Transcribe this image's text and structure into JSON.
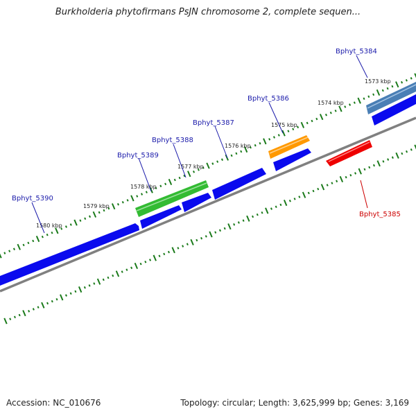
{
  "title": "Burkholderia phytofirmans PsJN chromosome 2, complete sequen...",
  "footer": {
    "accession": "Accession: NC_010676",
    "topology": "Topology: circular; Length: 3,625,999 bp; Genes: 3,169"
  },
  "colors": {
    "cds": "#0a0aee",
    "tick": "#1a7a1a",
    "backbone": "#808080",
    "label_forward": "#1a1aaa",
    "label_reverse": "#cc0000",
    "rrna_green": "#33bb33",
    "orange": "#ff9900",
    "steelblue": "#4a7fb5",
    "red": "#ee0000"
  },
  "kbp_labels": [
    "1573 kbp",
    "1574 kbp",
    "1575 kbp",
    "1576 kbp",
    "1577 kbp",
    "1578 kbp",
    "1579 kbp",
    "1580 kbp"
  ],
  "genes": [
    {
      "label": "Bphyt_5384",
      "strand": "forward"
    },
    {
      "label": "Bphyt_5385",
      "strand": "reverse"
    },
    {
      "label": "Bphyt_5386",
      "strand": "forward"
    },
    {
      "label": "Bphyt_5387",
      "strand": "forward"
    },
    {
      "label": "Bphyt_5388",
      "strand": "forward"
    },
    {
      "label": "Bphyt_5389",
      "strand": "forward"
    },
    {
      "label": "Bphyt_5390",
      "strand": "forward"
    }
  ]
}
